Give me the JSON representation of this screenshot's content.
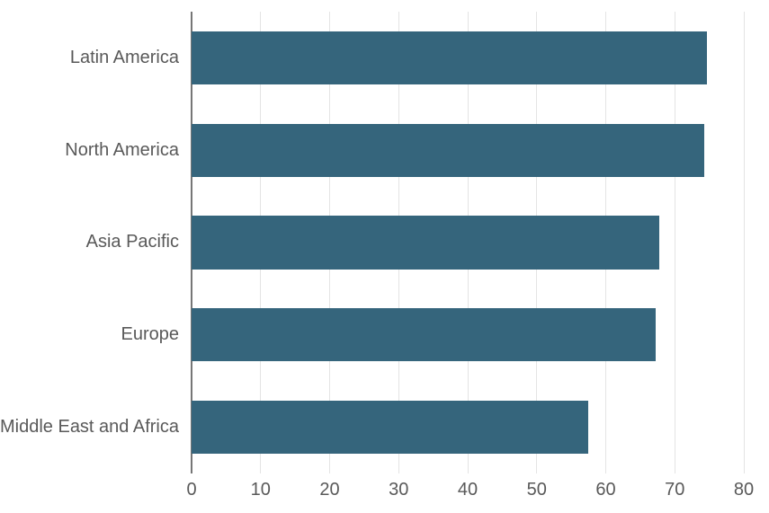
{
  "chart_data": {
    "type": "bar",
    "orientation": "horizontal",
    "title": "",
    "xlabel": "",
    "ylabel": "",
    "categories": [
      "Latin America",
      "North America",
      "Asia Pacific",
      "Europe",
      "Middle East and Africa"
    ],
    "values": [
      74.6,
      74.3,
      67.8,
      67.2,
      57.4
    ],
    "xlim": [
      0,
      80
    ],
    "xticks": [
      0,
      10,
      20,
      30,
      40,
      50,
      60,
      70,
      80
    ],
    "grid": "vertical-gridlines-on",
    "legend": "none",
    "colors": {
      "bar": "#35657C",
      "gridline": "#E4E4E4",
      "axis_line": "#767676",
      "label_text": "#595959",
      "background": "#FFFFFF"
    }
  }
}
